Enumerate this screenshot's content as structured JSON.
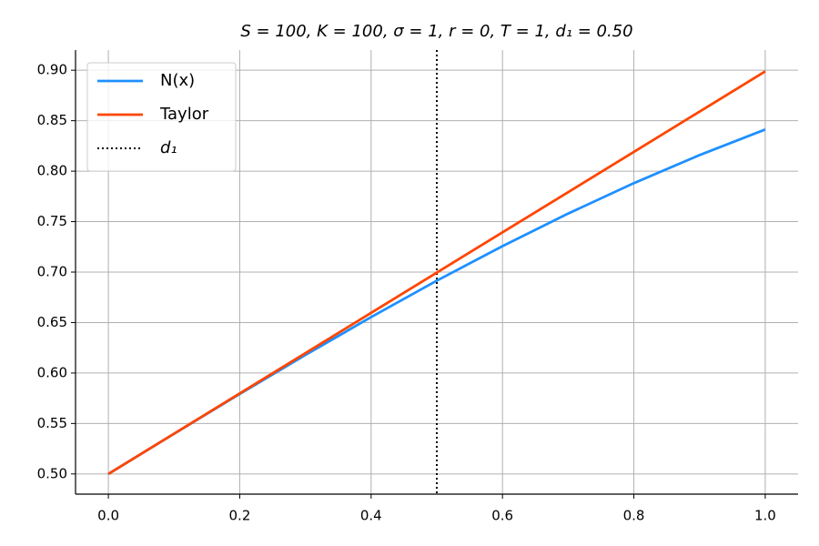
{
  "chart_data": {
    "type": "line",
    "title": "S = 100, K = 100, σ = 1, r = 0, T = 1, d₁ = 0.50",
    "x": [
      0,
      0.1,
      0.2,
      0.3,
      0.4,
      0.5,
      0.6,
      0.7,
      0.8,
      0.9,
      1.0
    ],
    "series": [
      {
        "name": "N(x)",
        "color": "#1e90ff",
        "values": [
          0.5,
          0.5398,
          0.5793,
          0.6179,
          0.6554,
          0.6915,
          0.7257,
          0.758,
          0.7881,
          0.8159,
          0.8413
        ]
      },
      {
        "name": "Taylor",
        "color": "#ff4500",
        "values": [
          0.5,
          0.5399,
          0.5798,
          0.6197,
          0.6596,
          0.6995,
          0.7394,
          0.7792,
          0.8191,
          0.859,
          0.8989
        ]
      }
    ],
    "vline": {
      "name": "d₁",
      "x": 0.5,
      "color": "#000000",
      "style": "dotted"
    },
    "xlim": [
      -0.05,
      1.05
    ],
    "ylim": [
      0.48,
      0.92
    ],
    "xticks": [
      {
        "value": 0,
        "label": "0.0"
      },
      0.2,
      0.4,
      0.6,
      0.8,
      {
        "value": 1,
        "label": "1.0"
      }
    ],
    "yticks": [
      {
        "value": 0.5,
        "label": "0.50"
      },
      0.55,
      {
        "value": 0.6,
        "label": "0.60"
      },
      0.65,
      {
        "value": 0.7,
        "label": "0.70"
      },
      0.75,
      {
        "value": 0.8,
        "label": "0.80"
      },
      0.85,
      {
        "value": 0.9,
        "label": "0.90"
      }
    ],
    "grid": true,
    "legend": "upper-left"
  }
}
